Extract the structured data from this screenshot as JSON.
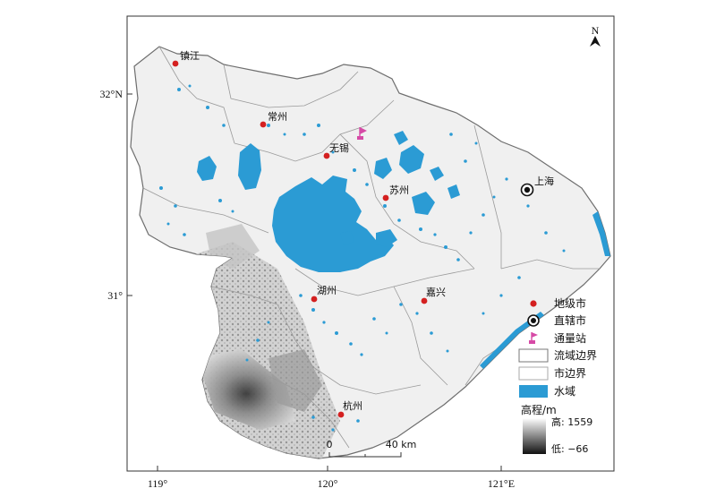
{
  "map": {
    "north_label": "N",
    "lat_ticks": [
      "32°N",
      "31°"
    ],
    "lon_ticks": [
      "119°",
      "120°",
      "121°E"
    ],
    "colors": {
      "water": "#2b9bd4",
      "land": "#f2f2f2",
      "boundary": "#8a8a8a",
      "city_marker": "#d42020",
      "station_flag": "#d64aa6"
    },
    "cities": [
      {
        "name": "镇江",
        "type": "prefecture"
      },
      {
        "name": "常州",
        "type": "prefecture"
      },
      {
        "name": "无锡",
        "type": "prefecture"
      },
      {
        "name": "苏州",
        "type": "prefecture"
      },
      {
        "name": "上海",
        "type": "municipality"
      },
      {
        "name": "湖州",
        "type": "prefecture"
      },
      {
        "name": "嘉兴",
        "type": "prefecture"
      },
      {
        "name": "杭州",
        "type": "prefecture"
      }
    ],
    "legend": {
      "prefecture": "地级市",
      "municipality": "直辖市",
      "station": "通量站",
      "basin_boundary": "流域边界",
      "city_boundary": "市边界",
      "water": "水域",
      "elevation_title": "高程/m",
      "elevation_high": "高: 1559",
      "elevation_low": "低: −66"
    },
    "scale_bar": {
      "start": "0",
      "end": "40 km"
    }
  }
}
